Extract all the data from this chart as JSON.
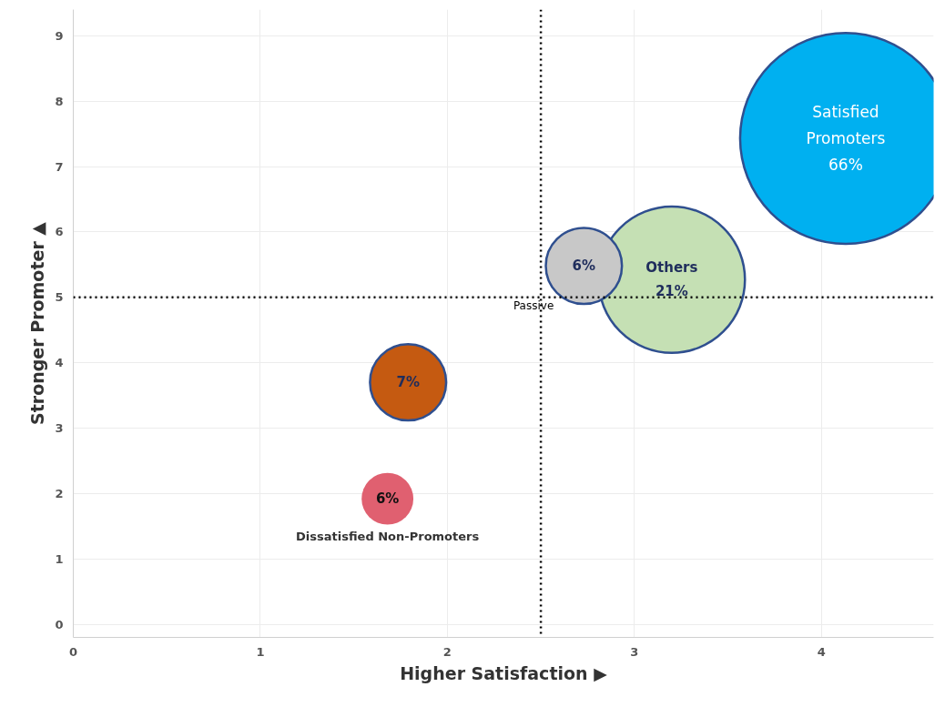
{
  "chart_data": {
    "type": "bubble",
    "xlabel": "Higher Satisfaction ▶",
    "ylabel": "Stronger Promoter ▲",
    "x": [
      4.13,
      3.2,
      2.73,
      1.79,
      1.68
    ],
    "values": [
      7.43,
      5.27,
      5.48,
      3.7,
      1.92
    ],
    "sizes": [
      1,
      0.48,
      0.13,
      0.13,
      0.06
    ],
    "colors": [
      "#00b0f0",
      "#c5e0b4",
      "#c8c8c8",
      "#c55a11",
      "#e06070"
    ],
    "xlim": [
      0,
      4.6
    ],
    "ylim": [
      -0.2,
      9.4
    ],
    "xticks": [
      0,
      1,
      2,
      3,
      4
    ],
    "yticks": [
      0,
      1,
      2,
      3,
      4,
      5,
      6,
      7,
      8,
      9
    ],
    "grid": true,
    "ref_lines": [
      {
        "axis": "x",
        "value": 2.5,
        "line_style": "dotted",
        "color": "#000000"
      },
      {
        "axis": "y",
        "value": 5,
        "line_style": "dotted",
        "color": "#000000"
      }
    ],
    "annotations": [
      {
        "text": "Satisfied\nPromoters\n66%",
        "x": 4.13,
        "y": 7.43
      },
      {
        "text": "Others\n21%",
        "x": 3.2,
        "y": 5.27
      },
      {
        "text": "6%",
        "x": 2.73,
        "y": 5.48
      },
      {
        "text": "7%",
        "x": 1.79,
        "y": 3.7
      },
      {
        "text": "6%",
        "x": 1.68,
        "y": 1.92
      },
      {
        "text": "Dissatisfied Non-Promoters",
        "x": 1.68,
        "y": 1.92
      },
      {
        "text": "Passive",
        "x": 2.5,
        "y": 5
      }
    ]
  }
}
